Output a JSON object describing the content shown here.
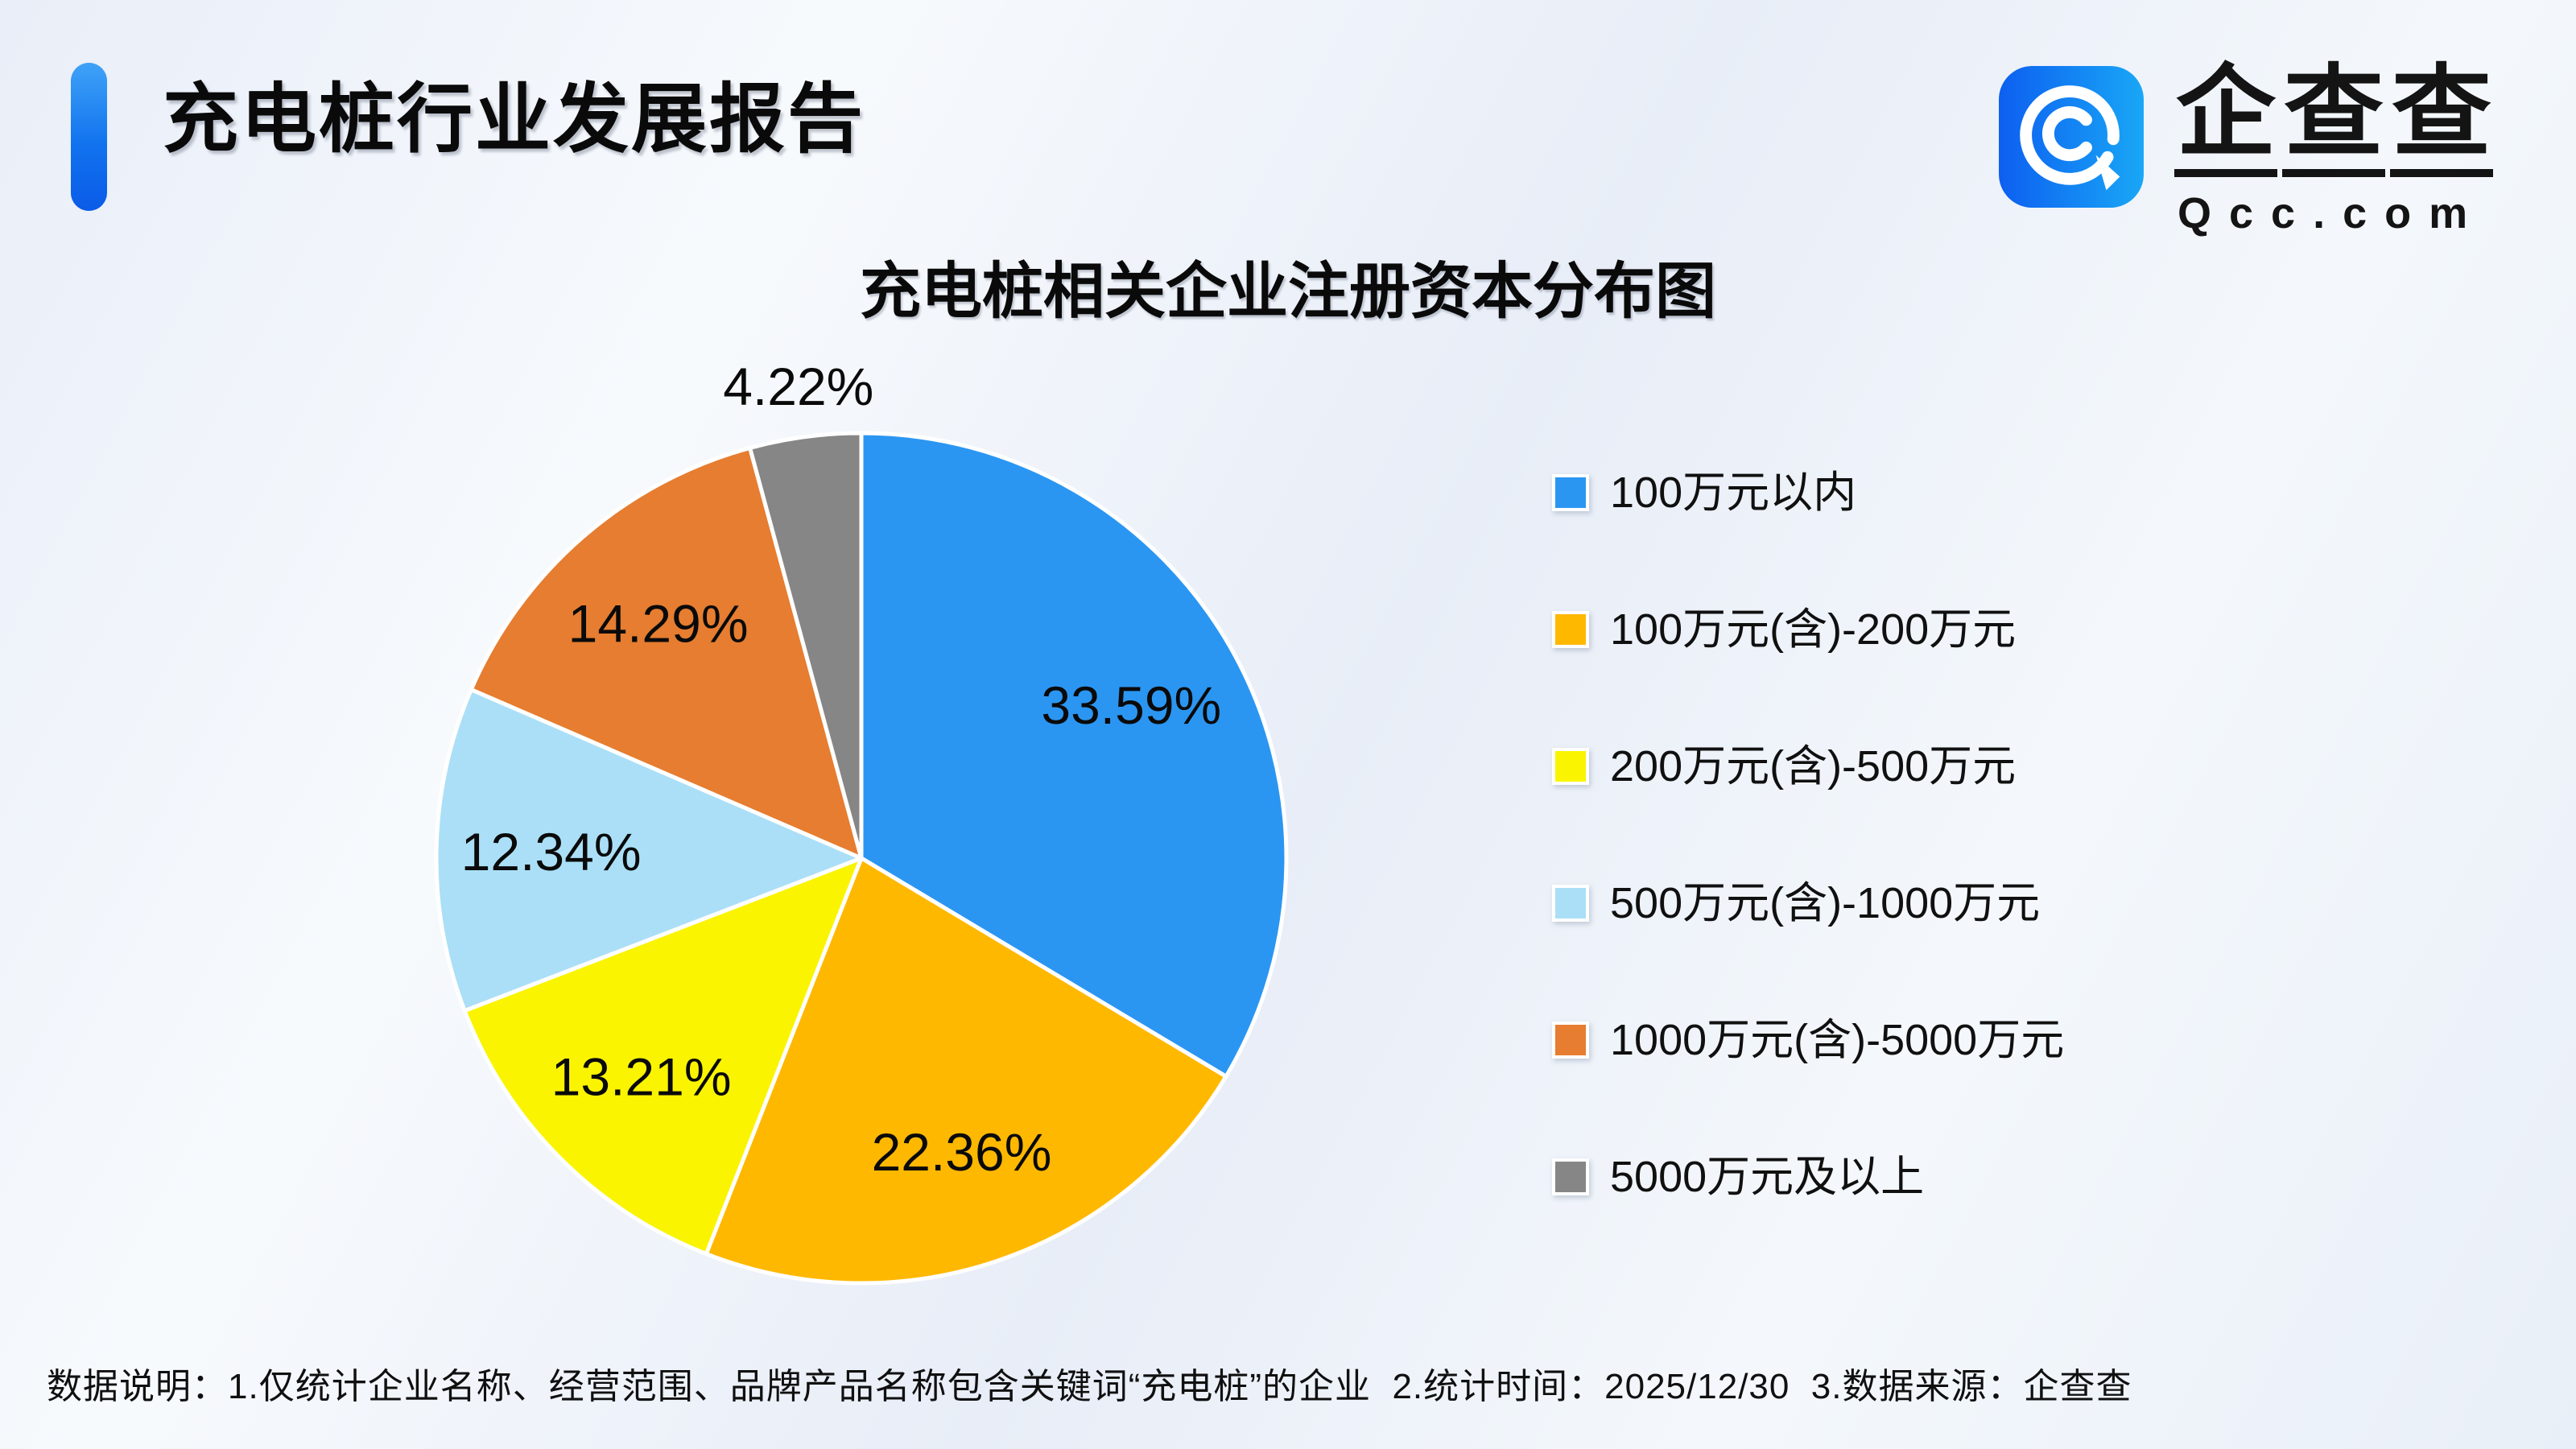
{
  "header": {
    "title": "充电桩行业发展报告"
  },
  "logo": {
    "icon": "qcc-magnifier-icon",
    "brand_chars": [
      "企",
      "查",
      "查"
    ],
    "domain": "Qcc.com"
  },
  "chart_data": {
    "type": "pie",
    "title": "充电桩相关企业注册资本分布图",
    "unit": "percent",
    "legend_position": "right",
    "start_angle": "12-oclock",
    "direction": "clockwise",
    "slices": [
      {
        "label": "100万元以内",
        "value": 33.59,
        "pct_label": "33.59%",
        "color": "#2B96F2",
        "label_inside": true
      },
      {
        "label": "100万元(含)-200万元",
        "value": 22.36,
        "pct_label": "22.36%",
        "color": "#FFB800",
        "label_inside": true
      },
      {
        "label": "200万元(含)-500万元",
        "value": 13.21,
        "pct_label": "13.21%",
        "color": "#FAF400",
        "label_inside": true
      },
      {
        "label": "500万元(含)-1000万元",
        "value": 12.34,
        "pct_label": "12.34%",
        "color": "#ABDFF7",
        "label_inside": true
      },
      {
        "label": "1000万元(含)-5000万元",
        "value": 14.29,
        "pct_label": "14.29%",
        "color": "#E67D30",
        "label_inside": true
      },
      {
        "label": "5000万元及以上",
        "value": 4.22,
        "pct_label": "4.22%",
        "color": "#868686",
        "label_inside": false
      }
    ]
  },
  "footer": {
    "note": "数据说明：1.仅统计企业名称、经营范围、品牌产品名称包含关键词“充电桩”的企业  2.统计时间：2025/12/30  3.数据来源：企查查"
  }
}
